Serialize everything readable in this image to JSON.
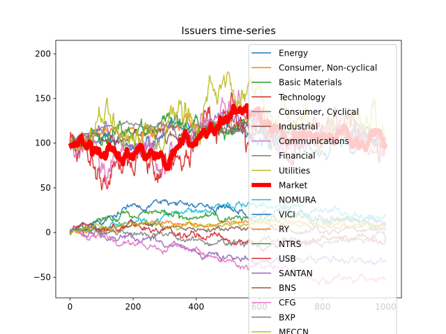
{
  "chart_data": {
    "type": "line",
    "title": "Issuers time-series",
    "xlabel": "",
    "ylabel": "",
    "xlim": [
      -45,
      1050
    ],
    "ylim": [
      -73,
      215
    ],
    "x_ticks": [
      0,
      200,
      400,
      600,
      800,
      1000
    ],
    "y_ticks": [
      -50,
      0,
      50,
      100,
      150,
      200
    ],
    "grid": false,
    "legend_position": "upper-right",
    "n_points": 1001,
    "series": [
      {
        "name": "Energy",
        "color": "#1f77b4",
        "group": "sector",
        "start": 100,
        "end": 96,
        "noise": 6,
        "trend": [
          100,
          108,
          95,
          104,
          112,
          118,
          103,
          98,
          92,
          106,
          100
        ]
      },
      {
        "name": "Consumer, Non-cyclical",
        "color": "#ff7f0e",
        "group": "sector",
        "start": 100,
        "end": 102,
        "noise": 5,
        "trend": [
          100,
          110,
          104,
          118,
          122,
          128,
          120,
          112,
          106,
          112,
          102
        ]
      },
      {
        "name": "Basic Materials",
        "color": "#2ca02c",
        "group": "sector",
        "start": 100,
        "end": 104,
        "noise": 7,
        "trend": [
          100,
          114,
          108,
          120,
          116,
          124,
          118,
          112,
          110,
          118,
          104
        ]
      },
      {
        "name": "Technology",
        "color": "#d62728",
        "group": "sector",
        "start": 100,
        "end": 94,
        "noise": 14,
        "trend": [
          100,
          82,
          92,
          72,
          108,
          150,
          138,
          96,
          108,
          118,
          94
        ]
      },
      {
        "name": "Consumer, Cyclical",
        "color": "#9467bd",
        "group": "sector",
        "start": 100,
        "end": 98,
        "noise": 6,
        "trend": [
          100,
          112,
          96,
          110,
          114,
          126,
          116,
          104,
          102,
          110,
          98
        ]
      },
      {
        "name": "Industrial",
        "color": "#8c564b",
        "group": "sector",
        "start": 100,
        "end": 100,
        "noise": 5,
        "trend": [
          100,
          110,
          100,
          112,
          116,
          122,
          114,
          106,
          104,
          112,
          100
        ]
      },
      {
        "name": "Communications",
        "color": "#e377c2",
        "group": "sector",
        "start": 100,
        "end": 88,
        "noise": 10,
        "trend": [
          100,
          90,
          96,
          80,
          110,
          140,
          130,
          94,
          104,
          110,
          88
        ]
      },
      {
        "name": "Financial",
        "color": "#7f7f7f",
        "group": "sector",
        "start": 100,
        "end": 105,
        "noise": 2,
        "trend": [
          100,
          118,
          120,
          119,
          118,
          116,
          112,
          110,
          108,
          112,
          105
        ]
      },
      {
        "name": "Utilities",
        "color": "#bcbd22",
        "group": "sector",
        "start": 100,
        "end": 104,
        "noise": 12,
        "trend": [
          100,
          130,
          110,
          108,
          128,
          160,
          150,
          118,
          116,
          140,
          104
        ]
      },
      {
        "name": "Market",
        "color": "#ff0000",
        "group": "market",
        "start": 100,
        "end": 99,
        "noise": 6,
        "trend": [
          100,
          95,
          90,
          82,
          105,
          140,
          132,
          98,
          108,
          112,
          99
        ]
      },
      {
        "name": "NOMURA",
        "color": "#17becf",
        "group": "issuer",
        "start": 0,
        "end": 18,
        "noise": 3,
        "trend": [
          0,
          8,
          14,
          20,
          22,
          26,
          30,
          28,
          24,
          22,
          18
        ]
      },
      {
        "name": "VICI",
        "color": "#1f77b4",
        "group": "issuer",
        "start": 0,
        "end": 12,
        "noise": 3,
        "trend": [
          0,
          10,
          26,
          36,
          30,
          24,
          20,
          18,
          16,
          14,
          12
        ]
      },
      {
        "name": "RY",
        "color": "#ff7f0e",
        "group": "issuer",
        "start": 0,
        "end": 6,
        "noise": 2,
        "trend": [
          0,
          4,
          8,
          10,
          8,
          10,
          12,
          10,
          8,
          8,
          6
        ]
      },
      {
        "name": "NTRS",
        "color": "#2ca02c",
        "group": "issuer",
        "start": 0,
        "end": 10,
        "noise": 3,
        "trend": [
          0,
          14,
          20,
          24,
          18,
          16,
          14,
          16,
          12,
          12,
          10
        ]
      },
      {
        "name": "USB",
        "color": "#d62728",
        "group": "issuer",
        "start": 0,
        "end": -4,
        "noise": 3,
        "trend": [
          0,
          6,
          10,
          2,
          -6,
          -10,
          -12,
          -10,
          -8,
          -6,
          -4
        ]
      },
      {
        "name": "SANTAN",
        "color": "#9467bd",
        "group": "issuer",
        "start": 0,
        "end": -30,
        "noise": 3,
        "trend": [
          0,
          -4,
          -8,
          -12,
          -20,
          -28,
          -32,
          -30,
          -28,
          -30,
          -30
        ]
      },
      {
        "name": "BNS",
        "color": "#8c564b",
        "group": "issuer",
        "start": 0,
        "end": 2,
        "noise": 2,
        "trend": [
          0,
          6,
          8,
          6,
          4,
          6,
          4,
          2,
          2,
          4,
          2
        ]
      },
      {
        "name": "CFG",
        "color": "#e377c2",
        "group": "issuer",
        "start": 0,
        "end": -54,
        "noise": 3,
        "trend": [
          0,
          -4,
          -10,
          -16,
          -22,
          -30,
          -36,
          -42,
          -48,
          -52,
          -54
        ]
      },
      {
        "name": "BXP",
        "color": "#7f7f7f",
        "group": "issuer",
        "start": 0,
        "end": -8,
        "noise": 3,
        "trend": [
          0,
          4,
          2,
          -4,
          -10,
          -14,
          -12,
          -10,
          -8,
          -10,
          -8
        ]
      },
      {
        "name": "MFCCN",
        "color": "#bcbd22",
        "group": "issuer",
        "start": 0,
        "end": 8,
        "noise": 2,
        "trend": [
          0,
          8,
          12,
          10,
          8,
          10,
          12,
          10,
          8,
          10,
          8
        ]
      }
    ]
  }
}
